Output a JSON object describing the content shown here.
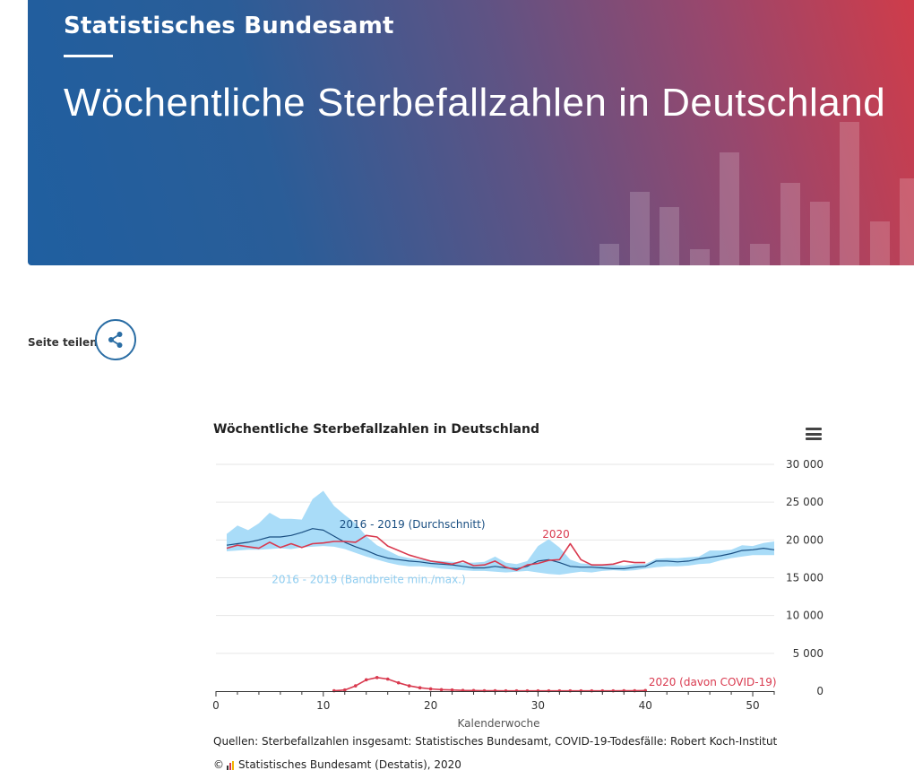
{
  "header": {
    "brand": "Statistisches Bundesamt",
    "title": "Wöchentliche Sterbefallzahlen in Deutschland"
  },
  "share": {
    "label": "Seite teilen"
  },
  "chart_data": {
    "type": "line",
    "title": "Wöchentliche Sterbefallzahlen in Deutschland",
    "xlabel": "Kalenderwoche",
    "ylabel": "",
    "xlim": [
      0,
      52
    ],
    "ylim": [
      0,
      30000
    ],
    "x_ticks": [
      0,
      10,
      20,
      30,
      40,
      50
    ],
    "x_tick_labels": [
      "0",
      "10",
      "20",
      "30",
      "40",
      "50"
    ],
    "y_ticks": [
      0,
      5000,
      10000,
      15000,
      20000,
      25000,
      30000
    ],
    "y_tick_labels": [
      "0",
      "5 000",
      "10 000",
      "15 000",
      "20 000",
      "25 000",
      "30 000"
    ],
    "band": {
      "name": "2016 - 2019 (Bandbreite min./max.)",
      "x": [
        1,
        2,
        3,
        4,
        5,
        6,
        7,
        8,
        9,
        10,
        11,
        12,
        13,
        14,
        15,
        16,
        17,
        18,
        19,
        20,
        21,
        22,
        23,
        24,
        25,
        26,
        27,
        28,
        29,
        30,
        31,
        32,
        33,
        34,
        35,
        36,
        37,
        38,
        39,
        40,
        41,
        42,
        43,
        44,
        45,
        46,
        47,
        48,
        49,
        50,
        51,
        52
      ],
      "min": [
        18500,
        18600,
        18700,
        18700,
        18800,
        18900,
        18800,
        19000,
        19100,
        19200,
        19100,
        18800,
        18300,
        17800,
        17400,
        17000,
        16700,
        16500,
        16500,
        16400,
        16200,
        16100,
        16000,
        15900,
        15900,
        15800,
        15700,
        15800,
        15900,
        15700,
        15500,
        15400,
        15600,
        15800,
        15700,
        15900,
        16000,
        15900,
        16000,
        16200,
        16400,
        16500,
        16500,
        16600,
        16800,
        16900,
        17300,
        17600,
        17800,
        18000,
        18000,
        18000
      ],
      "max": [
        20800,
        21900,
        21300,
        22200,
        23600,
        22800,
        22800,
        22700,
        25400,
        26500,
        24500,
        23300,
        22200,
        20500,
        19300,
        18600,
        17900,
        17600,
        17400,
        17300,
        17200,
        17100,
        17000,
        17000,
        17100,
        17800,
        17000,
        16800,
        17200,
        19200,
        20100,
        19000,
        17400,
        16900,
        16800,
        16700,
        16700,
        16600,
        16800,
        16800,
        17500,
        17600,
        17600,
        17700,
        17800,
        18600,
        18600,
        18700,
        19300,
        19200,
        19600,
        19800
      ]
    },
    "series": [
      {
        "name": "2016 - 2019 (Durchschnitt)",
        "color": "#1a4f82",
        "x": [
          1,
          2,
          3,
          4,
          5,
          6,
          7,
          8,
          9,
          10,
          11,
          12,
          13,
          14,
          15,
          16,
          17,
          18,
          19,
          20,
          21,
          22,
          23,
          24,
          25,
          26,
          27,
          28,
          29,
          30,
          31,
          32,
          33,
          34,
          35,
          36,
          37,
          38,
          39,
          40,
          41,
          42,
          43,
          44,
          45,
          46,
          47,
          48,
          49,
          50,
          51,
          52
        ],
        "values": [
          19300,
          19500,
          19700,
          20000,
          20400,
          20400,
          20600,
          21000,
          21500,
          21300,
          20500,
          19700,
          19100,
          18600,
          18000,
          17600,
          17400,
          17200,
          17100,
          16900,
          16800,
          16700,
          16500,
          16300,
          16300,
          16500,
          16300,
          16200,
          16500,
          17200,
          17400,
          17000,
          16500,
          16400,
          16400,
          16300,
          16200,
          16200,
          16400,
          16500,
          17200,
          17200,
          17100,
          17200,
          17500,
          17700,
          17900,
          18200,
          18600,
          18700,
          18900,
          18700
        ]
      },
      {
        "name": "2020",
        "color": "#d93a4f",
        "x": [
          1,
          2,
          3,
          4,
          5,
          6,
          7,
          8,
          9,
          10,
          11,
          12,
          13,
          14,
          15,
          16,
          17,
          18,
          19,
          20,
          21,
          22,
          23,
          24,
          25,
          26,
          27,
          28,
          29,
          30,
          31,
          32,
          33,
          34,
          35,
          36,
          37,
          38,
          39,
          40
        ],
        "values": [
          18900,
          19300,
          19100,
          18900,
          19700,
          19000,
          19500,
          19000,
          19500,
          19600,
          19800,
          19800,
          19700,
          20600,
          20400,
          19200,
          18600,
          18000,
          17600,
          17200,
          17000,
          16800,
          17200,
          16600,
          16700,
          17200,
          16400,
          16000,
          16700,
          16900,
          17300,
          17400,
          19500,
          17400,
          16700,
          16700,
          16800,
          17200,
          17000,
          17000
        ]
      },
      {
        "name": "2020 (davon COVID-19)",
        "color": "#d93a4f",
        "x": [
          11,
          12,
          13,
          14,
          15,
          16,
          17,
          18,
          19,
          20,
          21,
          22,
          23,
          24,
          25,
          26,
          27,
          28,
          29,
          30,
          31,
          32,
          33,
          34,
          35,
          36,
          37,
          38,
          39,
          40
        ],
        "values": [
          50,
          150,
          700,
          1500,
          1800,
          1600,
          1100,
          700,
          450,
          300,
          200,
          150,
          100,
          80,
          60,
          50,
          40,
          40,
          40,
          40,
          40,
          40,
          40,
          40,
          40,
          40,
          40,
          50,
          50,
          80
        ]
      }
    ],
    "annotations": [
      {
        "text": "2016 - 2019 (Durchschnitt)",
        "color": "#1a4f82",
        "x": 11.5,
        "y": 21600
      },
      {
        "text": "2020",
        "color": "#d93a4f",
        "x": 30.4,
        "y": 20300
      },
      {
        "text": "2016 - 2019 (Bandbreite min./max.)",
        "color": "#8fcdf0",
        "x": 5.2,
        "y": 14300
      },
      {
        "text": "2020 (davon COVID-19)",
        "color": "#d93a4f",
        "x": 40.3,
        "y": 700
      }
    ]
  },
  "footer": {
    "source": "Quellen: Sterbefallzahlen insgesamt: Statistisches Bundesamt, COVID-19-Todesfälle: Robert Koch-Institut",
    "copyright_symbol": "©",
    "copyright": "Statistisches Bundesamt (Destatis), 2020"
  },
  "colors": {
    "band": "#a9dcf8",
    "average": "#1a4f82",
    "y2020": "#d93a4f",
    "grid": "#e6e6e6"
  }
}
